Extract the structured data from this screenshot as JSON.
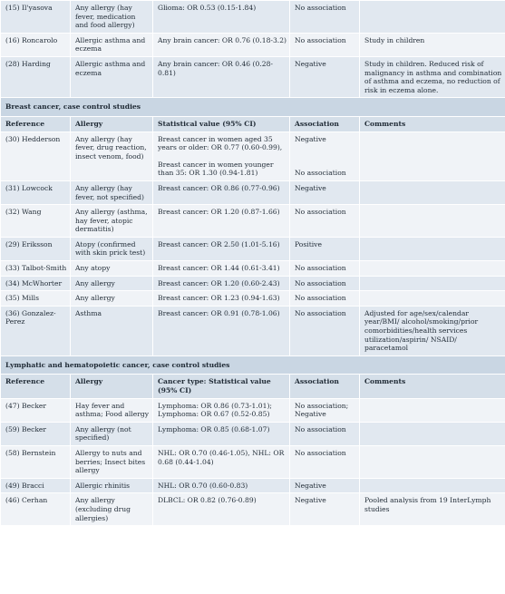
{
  "top_rows": [
    {
      "ref": "(15) Il'yasova",
      "allergy": "Any allergy (hay fever, medication and food allergy)",
      "stat": "Glioma: OR 0.53 (0.15-1.84)",
      "assoc": "No association",
      "comments": ""
    },
    {
      "ref": "(16) Roncarolo",
      "allergy": "Allergic asthma and eczema",
      "stat": "Any brain cancer: OR 0.76 (0.18-3.2)",
      "assoc": "No association",
      "comments": "Study in children"
    },
    {
      "ref": "(28) Harding",
      "allergy": "Allergic asthma and eczema",
      "stat": "Any brain cancer: OR 0.46 (0.28-0.81)",
      "assoc": "Negative",
      "comments": "Study in children. Reduced risk of malignancy in asthma and combination of asthma and eczema, no reduction of risk in eczema alone."
    }
  ],
  "breast": {
    "title": "Breast cancer, case control studies",
    "headers": {
      "ref": "Reference",
      "allergy": "Allergy",
      "stat": "Statistical value (95% CI)",
      "assoc": "Association",
      "comments": "Comments"
    },
    "hedderson": {
      "ref": "(30) Hedderson",
      "allergy": "Any allergy (hay fever, drug reaction, insect venom, food)",
      "stat_a": "Breast cancer in women aged 35 years or older: OR 0.77 (0.60-0.99),",
      "stat_b": "Breast cancer in women younger than 35: OR 1.30 (0.94-1.81)",
      "assoc_a": "Negative",
      "assoc_b": "No association"
    },
    "rows": [
      {
        "ref": "(31) Lowcock",
        "allergy": "Any allergy (hay fever, not specified)",
        "stat": "Breast cancer: OR 0.86 (0.77-0.96)",
        "assoc": "Negative",
        "comments": ""
      },
      {
        "ref": "(32) Wang",
        "allergy": "Any allergy (asthma, hay fever, atopic dermatitis)",
        "stat": "Breast cancer: OR 1.20 (0.87-1.66)",
        "assoc": "No association",
        "comments": ""
      },
      {
        "ref": "(29) Eriksson",
        "allergy": "Atopy (confirmed with skin prick test)",
        "stat": "Breast cancer: OR 2.50 (1.01-5.16)",
        "assoc": "Positive",
        "comments": ""
      },
      {
        "ref": "(33) Talbot-Smith",
        "allergy": "Any atopy",
        "stat": "Breast cancer: OR 1.44 (0.61-3.41)",
        "assoc": "No association",
        "comments": ""
      },
      {
        "ref": "(34) McWhorter",
        "allergy": "Any allergy",
        "stat": "Breast cancer: OR 1.20 (0.60-2.43)",
        "assoc": "No association",
        "comments": ""
      },
      {
        "ref": "(35) Mills",
        "allergy": "Any allergy",
        "stat": "Breast cancer: OR 1.23 (0.94-1.63)",
        "assoc": "No association",
        "comments": ""
      },
      {
        "ref": "(36) Gonzalez-Perez",
        "allergy": "Asthma",
        "stat": "Breast cancer: OR 0.91 (0.78-1.06)",
        "assoc": "No association",
        "comments": "Adjusted for age/sex/calendar year/BMI/ alcohol/smoking/prior comorbidities/health services utilization/aspirin/ NSAID/ paracetamol"
      }
    ]
  },
  "lymph": {
    "title": "Lymphatic and hematopoietic cancer, case control studies",
    "headers": {
      "ref": "Reference",
      "allergy": "Allergy",
      "stat": "Cancer type: Statistical value (95% CI)",
      "assoc": "Association",
      "comments": "Comments"
    },
    "rows": [
      {
        "ref": "(47) Becker",
        "allergy": "Hay fever and asthma; Food allergy",
        "stat": "Lymphoma: OR 0.86 (0.73-1.01); Lymphoma: OR 0.67 (0.52-0.85)",
        "assoc": "No association; Negative",
        "comments": ""
      },
      {
        "ref": "(59) Becker",
        "allergy": "Any allergy (not specified)",
        "stat": "Lymphoma: OR 0.85 (0.68-1.07)",
        "assoc": "No association",
        "comments": ""
      },
      {
        "ref": "(58) Bernstein",
        "allergy": "Allergy to nuts and berries; Insect bites allergy",
        "stat": "NHL: OR 0.70 (0.46-1.05), NHL: OR 0.68 (0.44-1.04)",
        "assoc": "No association",
        "comments": ""
      },
      {
        "ref": "(49) Bracci",
        "allergy": "Allergic rhinitis",
        "stat": "NHL: OR 0.70 (0.60-0.83)",
        "assoc": "Negative",
        "comments": ""
      },
      {
        "ref": "(46) Cerhan",
        "allergy": "Any allergy (excluding drug allergies)",
        "stat": "DLBCL: OR 0.82 (0.76-0.89)",
        "assoc": "Negative",
        "comments": "Pooled analysis from 19 InterLymph studies"
      }
    ]
  }
}
